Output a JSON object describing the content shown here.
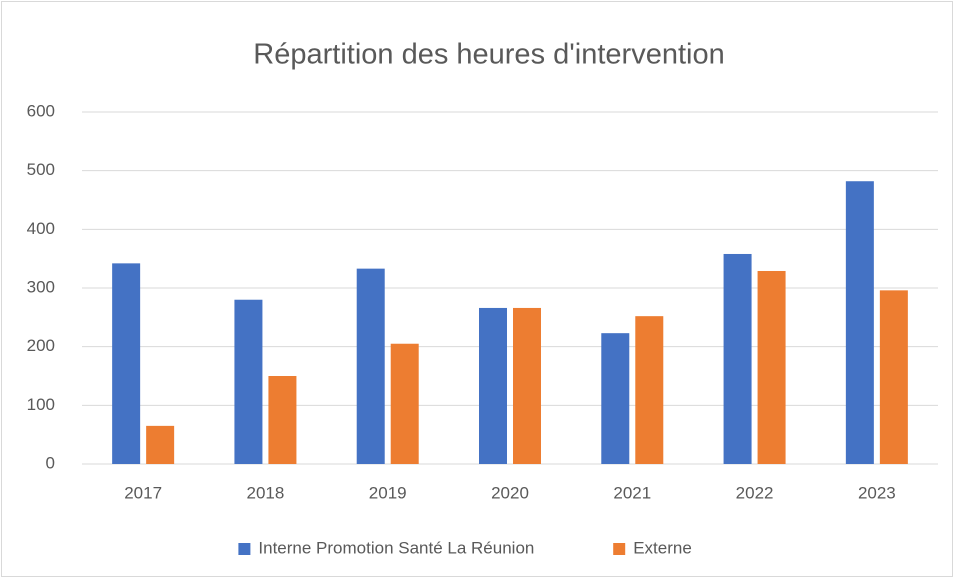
{
  "chart_data": {
    "type": "bar",
    "title": "Répartition des heures d'intervention",
    "categories": [
      "2017",
      "2018",
      "2019",
      "2020",
      "2021",
      "2022",
      "2023"
    ],
    "series": [
      {
        "name": "Interne Promotion Santé La Réunion",
        "color": "#4472c4",
        "values": [
          342,
          280,
          333,
          266,
          223,
          358,
          482
        ]
      },
      {
        "name": "Externe",
        "color": "#ed7d31",
        "values": [
          65,
          150,
          205,
          266,
          252,
          329,
          296
        ]
      }
    ],
    "ylim": [
      0,
      600
    ],
    "yticks": [
      0,
      100,
      200,
      300,
      400,
      500,
      600
    ],
    "grid": true,
    "legend": "bottom"
  }
}
